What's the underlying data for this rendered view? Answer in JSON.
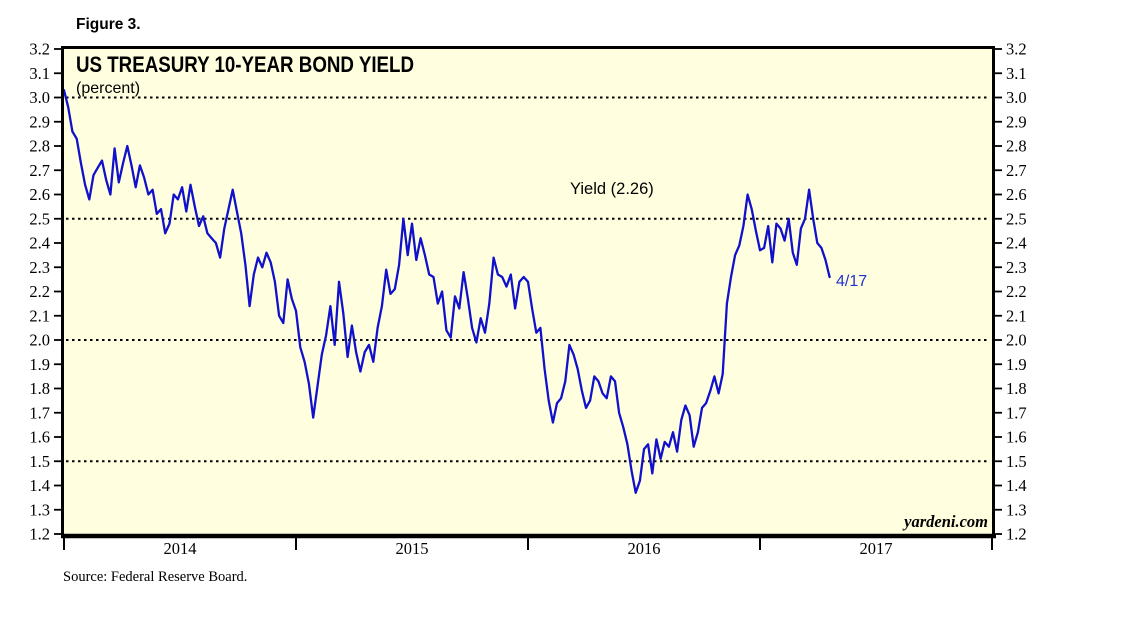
{
  "figure_label": "Figure 3.",
  "source_note": "Source: Federal Reserve Board.",
  "colors": {
    "line": "#1111cc",
    "plot_background": "#ffffe0",
    "frame": "#000000",
    "end_label_blue": "#2233cc",
    "page_background": "#ffffff"
  },
  "chart_data": {
    "type": "line",
    "title": "US TREASURY 10-YEAR BOND YIELD",
    "subtitle": "(percent)",
    "annotation": "Yield (2.26)",
    "end_label": "4/17",
    "watermark": "yardeni.com",
    "grid": "dotted horizontal lines",
    "legend_position": "none",
    "ylim": [
      1.2,
      3.2
    ],
    "xlim_years": [
      2014,
      2018
    ],
    "y_tick_labels": [
      "3.2",
      "3.1",
      "3.0",
      "2.9",
      "2.8",
      "2.7",
      "2.6",
      "2.5",
      "2.4",
      "2.3",
      "2.2",
      "2.1",
      "2.0",
      "1.9",
      "1.8",
      "1.7",
      "1.6",
      "1.5",
      "1.4",
      "1.3",
      "1.2"
    ],
    "dotted_gridlines": [
      3.0,
      2.5,
      2.0,
      1.5
    ],
    "x_tick_years": [
      2014,
      2015,
      2016,
      2017,
      2018
    ],
    "x_labels": [
      "2014",
      "2015",
      "2016",
      "2017"
    ],
    "series": [
      {
        "name": "US Treasury 10-Year Bond Yield (percent, daily)",
        "last_value": 2.26,
        "last_date_label": "4/17",
        "segments": [
          {
            "year": 2014,
            "span": 1,
            "values": [
              3.03,
              2.96,
              2.86,
              2.83,
              2.73,
              2.64,
              2.58,
              2.68,
              2.71,
              2.74,
              2.66,
              2.6,
              2.79,
              2.65,
              2.73,
              2.8,
              2.72,
              2.63,
              2.72,
              2.67,
              2.6,
              2.62,
              2.52,
              2.54,
              2.44,
              2.48,
              2.6,
              2.58,
              2.63,
              2.53,
              2.64,
              2.55,
              2.47,
              2.51,
              2.44,
              2.42,
              2.4,
              2.34,
              2.46,
              2.54,
              2.62,
              2.53,
              2.44,
              2.31,
              2.14,
              2.27,
              2.34,
              2.3,
              2.36,
              2.32,
              2.24,
              2.1,
              2.07,
              2.25,
              2.17
            ]
          },
          {
            "year": 2015,
            "span": 1,
            "values": [
              2.12,
              1.97,
              1.91,
              1.82,
              1.68,
              1.81,
              1.94,
              2.02,
              2.14,
              1.98,
              2.24,
              2.11,
              1.93,
              2.06,
              1.95,
              1.87,
              1.95,
              1.98,
              1.91,
              2.05,
              2.14,
              2.29,
              2.19,
              2.21,
              2.31,
              2.5,
              2.35,
              2.48,
              2.33,
              2.42,
              2.35,
              2.27,
              2.26,
              2.15,
              2.2,
              2.04,
              2.01,
              2.18,
              2.13,
              2.28,
              2.17,
              2.05,
              1.99,
              2.09,
              2.03,
              2.15,
              2.34,
              2.27,
              2.26,
              2.22,
              2.27,
              2.13,
              2.24,
              2.26
            ]
          },
          {
            "year": 2016,
            "span": 1,
            "values": [
              2.24,
              2.13,
              2.03,
              2.05,
              1.88,
              1.75,
              1.66,
              1.74,
              1.76,
              1.83,
              1.98,
              1.94,
              1.88,
              1.79,
              1.72,
              1.75,
              1.85,
              1.83,
              1.78,
              1.76,
              1.85,
              1.83,
              1.7,
              1.64,
              1.57,
              1.46,
              1.37,
              1.42,
              1.55,
              1.57,
              1.45,
              1.59,
              1.51,
              1.58,
              1.56,
              1.62,
              1.54,
              1.67,
              1.73,
              1.69,
              1.56,
              1.62,
              1.72,
              1.74,
              1.79,
              1.85,
              1.78,
              1.86,
              2.15,
              2.26,
              2.35,
              2.39,
              2.47,
              2.6,
              2.54,
              2.45
            ]
          },
          {
            "year": 2017,
            "span": 0.3,
            "values": [
              2.37,
              2.38,
              2.47,
              2.32,
              2.48,
              2.46,
              2.41,
              2.5,
              2.36,
              2.31,
              2.46,
              2.5,
              2.62,
              2.5,
              2.4,
              2.38,
              2.33,
              2.26
            ]
          }
        ]
      }
    ]
  }
}
